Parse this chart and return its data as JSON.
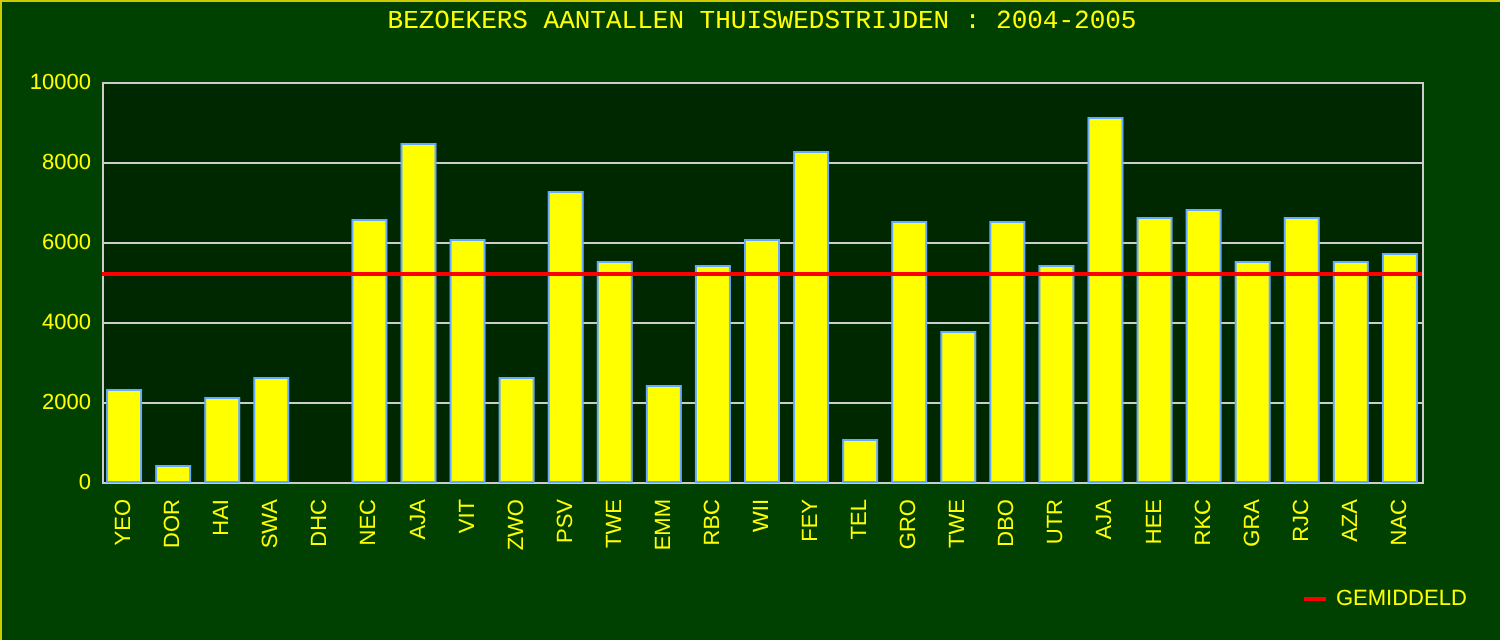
{
  "chart_data": {
    "type": "bar",
    "title": "BEZOEKERS AANTALLEN THUISWEDSTRIJDEN : 2004-2005",
    "categories": [
      "YEO",
      "DOR",
      "HAI",
      "SWA",
      "DHC",
      "NEC",
      "AJA",
      "VIT",
      "ZWO",
      "PSV",
      "TWE",
      "EMM",
      "RBC",
      "WII",
      "FEY",
      "TEL",
      "GRO",
      "TWE",
      "DBO",
      "UTR",
      "AJA",
      "HEE",
      "RKC",
      "GRA",
      "RJC",
      "AZA",
      "NAC"
    ],
    "values": [
      2300,
      400,
      2100,
      2600,
      0,
      6550,
      8450,
      6050,
      2600,
      7250,
      5500,
      2400,
      5400,
      6050,
      8250,
      1050,
      6500,
      3750,
      6500,
      5400,
      9100,
      6600,
      6800,
      5500,
      6600,
      5500,
      5700
    ],
    "color": "#ffff00",
    "ylim": [
      0,
      10000
    ],
    "yticks": [
      0,
      2000,
      4000,
      6000,
      8000,
      10000
    ],
    "grid": "y",
    "ref_lines": [
      {
        "axis": "y",
        "value": 5200,
        "label": "GEMIDDELD",
        "color": "#ff0000"
      }
    ],
    "legend": "bottom right"
  }
}
